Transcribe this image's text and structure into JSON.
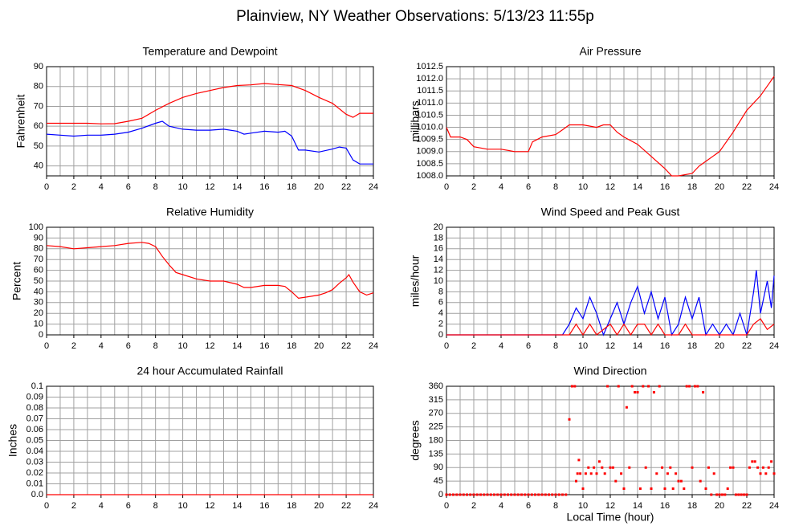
{
  "title": "Plainview, NY Weather Observations: 5/13/23 11:55p",
  "chart_data": [
    {
      "type": "line",
      "title": "Temperature and Dewpoint",
      "ylabel": "Fahrenheit",
      "xlim": [
        0,
        24
      ],
      "xticks": [
        0,
        2,
        4,
        6,
        8,
        10,
        12,
        14,
        16,
        18,
        20,
        22,
        24
      ],
      "xgrid": [
        0,
        1,
        2,
        3,
        4,
        5,
        6,
        7,
        8,
        9,
        10,
        11,
        12,
        13,
        14,
        15,
        16,
        17,
        18,
        19,
        20,
        21,
        22,
        23,
        24
      ],
      "ylim": [
        35,
        90
      ],
      "yticks": [
        40,
        50,
        60,
        70,
        80,
        90
      ],
      "series": [
        {
          "color": "#ff0000",
          "x": [
            0,
            1,
            2,
            3,
            4,
            5,
            6,
            7,
            8,
            9,
            10,
            11,
            12,
            13,
            14,
            15,
            16,
            17,
            18,
            19,
            20,
            21,
            22,
            22.5,
            23,
            24
          ],
          "values": [
            61.5,
            61.5,
            61.5,
            61.5,
            61.2,
            61.3,
            62.5,
            64,
            68,
            71.5,
            74.5,
            76.5,
            78,
            79.5,
            80.5,
            80.8,
            81.5,
            81,
            80.5,
            78,
            74.5,
            71.5,
            66,
            64.5,
            66.5,
            66.5
          ]
        },
        {
          "color": "#0000ff",
          "x": [
            0,
            1,
            2,
            3,
            4,
            5,
            6,
            7,
            8,
            8.5,
            9,
            10,
            11,
            12,
            13,
            14,
            14.5,
            15,
            16,
            17,
            17.5,
            18,
            18.5,
            19,
            20,
            21,
            21.5,
            22,
            22.5,
            23,
            24
          ],
          "values": [
            56,
            55.5,
            55,
            55.5,
            55.5,
            56,
            57,
            59,
            61.5,
            62.5,
            60,
            58.5,
            58,
            58,
            58.5,
            57.5,
            56,
            56.5,
            57.5,
            57,
            57.5,
            55,
            48,
            48,
            47,
            48.5,
            49.5,
            49,
            43,
            41,
            41
          ]
        }
      ]
    },
    {
      "type": "line",
      "title": "Air Pressure",
      "ylabel": "millibars",
      "xlim": [
        0,
        24
      ],
      "xticks": [
        0,
        2,
        4,
        6,
        8,
        10,
        12,
        14,
        16,
        18,
        20,
        22,
        24
      ],
      "xgrid": [
        0,
        1,
        2,
        3,
        4,
        5,
        6,
        7,
        8,
        9,
        10,
        11,
        12,
        13,
        14,
        15,
        16,
        17,
        18,
        19,
        20,
        21,
        22,
        23,
        24
      ],
      "ylim": [
        1008,
        1012.5
      ],
      "yticks": [
        {
          "value": 1008,
          "label": "1008.0"
        },
        1008.5,
        {
          "value": 1009,
          "label": "1009.0"
        },
        1009.5,
        {
          "value": 1010,
          "label": "1010.0"
        },
        1010.5,
        {
          "value": 1011,
          "label": "1011.0"
        },
        1011.5,
        {
          "value": 1012,
          "label": "1012.0"
        },
        1012.5
      ],
      "series": [
        {
          "color": "#ff0000",
          "x": [
            0,
            0.3,
            1,
            1.5,
            2,
            3,
            4,
            5,
            6,
            6.3,
            7,
            8,
            8.5,
            9,
            10,
            11,
            11.5,
            12,
            12.5,
            13,
            14,
            15,
            16,
            16.5,
            17,
            18,
            18.5,
            19,
            20,
            21,
            22,
            23,
            23.5,
            24
          ],
          "values": [
            1010,
            1009.6,
            1009.6,
            1009.5,
            1009.2,
            1009.1,
            1009.1,
            1009,
            1009,
            1009.4,
            1009.6,
            1009.7,
            1009.9,
            1010.1,
            1010.1,
            1010,
            1010.1,
            1010.1,
            1009.8,
            1009.6,
            1009.3,
            1008.8,
            1008.3,
            1008,
            1008,
            1008.1,
            1008.4,
            1008.6,
            1009,
            1009.8,
            1010.7,
            1011.3,
            1011.7,
            1012.1
          ]
        }
      ]
    },
    {
      "type": "line",
      "title": "Relative Humidity",
      "ylabel": "Percent",
      "xlim": [
        0,
        24
      ],
      "xticks": [
        0,
        2,
        4,
        6,
        8,
        10,
        12,
        14,
        16,
        18,
        20,
        22,
        24
      ],
      "xgrid": [
        0,
        1,
        2,
        3,
        4,
        5,
        6,
        7,
        8,
        9,
        10,
        11,
        12,
        13,
        14,
        15,
        16,
        17,
        18,
        19,
        20,
        21,
        22,
        23,
        24
      ],
      "ylim": [
        0,
        100
      ],
      "yticks": [
        0,
        10,
        20,
        30,
        40,
        50,
        60,
        70,
        80,
        90,
        100
      ],
      "series": [
        {
          "color": "#ff0000",
          "x": [
            0,
            1,
            2,
            3,
            4,
            5,
            6,
            7,
            7.5,
            8,
            8.5,
            9,
            9.5,
            10,
            11,
            12,
            13,
            14,
            14.5,
            15,
            16,
            17,
            17.5,
            18,
            18.5,
            19,
            20,
            20.5,
            21,
            21.5,
            22,
            22.2,
            22.5,
            23,
            23.5,
            24
          ],
          "values": [
            83,
            82,
            80,
            81,
            82,
            83,
            85,
            86,
            85,
            82,
            73,
            65,
            58,
            56,
            52,
            50,
            50,
            47,
            44,
            44,
            46,
            46,
            45,
            40,
            34,
            35,
            37,
            39,
            42,
            48,
            53,
            56,
            49,
            40,
            37,
            39
          ]
        }
      ]
    },
    {
      "type": "line",
      "title": "Wind Speed and Peak Gust",
      "ylabel": "miles/hour",
      "xlim": [
        0,
        24
      ],
      "xticks": [
        0,
        2,
        4,
        6,
        8,
        10,
        12,
        14,
        16,
        18,
        20,
        22,
        24
      ],
      "xgrid": [
        0,
        1,
        2,
        3,
        4,
        5,
        6,
        7,
        8,
        9,
        10,
        11,
        12,
        13,
        14,
        15,
        16,
        17,
        18,
        19,
        20,
        21,
        22,
        23,
        24
      ],
      "ylim": [
        0,
        20
      ],
      "yticks": [
        0,
        2,
        4,
        6,
        8,
        10,
        12,
        14,
        16,
        18,
        20
      ],
      "series": [
        {
          "color": "#0000ff",
          "x": [
            0,
            8.5,
            9,
            9.5,
            10,
            10.5,
            11,
            11.5,
            12,
            12.5,
            13,
            13.5,
            14,
            14.5,
            15,
            15.5,
            16,
            16.5,
            17,
            17.5,
            18,
            18.5,
            19,
            19.5,
            20,
            20.5,
            21,
            21.5,
            22,
            22.5,
            22.7,
            23,
            23.5,
            23.8,
            24
          ],
          "values": [
            0,
            0,
            2,
            5,
            3,
            7,
            4,
            0,
            3,
            6,
            2,
            6,
            9,
            4,
            8,
            3,
            7,
            0,
            2,
            7,
            3,
            7,
            0,
            2,
            0,
            2,
            0,
            4,
            0,
            8,
            12,
            4,
            10,
            5,
            11
          ]
        },
        {
          "color": "#ff0000",
          "x": [
            0,
            9,
            9.5,
            10,
            10.5,
            11,
            12,
            12.5,
            13,
            13.5,
            14,
            14.5,
            15,
            15.5,
            16,
            17,
            17.5,
            18,
            22,
            22.5,
            23,
            23.5,
            24
          ],
          "values": [
            0,
            0,
            2,
            0,
            2,
            0,
            2,
            0,
            2,
            0,
            2,
            2,
            0,
            2,
            0,
            0,
            2,
            0,
            0,
            2,
            3,
            1,
            2
          ]
        }
      ]
    },
    {
      "type": "line",
      "title": "24 hour Accumulated Rainfall",
      "ylabel": "Inches",
      "xlim": [
        0,
        24
      ],
      "xticks": [
        0,
        2,
        4,
        6,
        8,
        10,
        12,
        14,
        16,
        18,
        20,
        22,
        24
      ],
      "xgrid": [
        0,
        1,
        2,
        3,
        4,
        5,
        6,
        7,
        8,
        9,
        10,
        11,
        12,
        13,
        14,
        15,
        16,
        17,
        18,
        19,
        20,
        21,
        22,
        23,
        24
      ],
      "ylim": [
        0,
        0.1
      ],
      "yticks": [
        {
          "value": 0,
          "label": "0.0"
        },
        0.01,
        0.02,
        0.03,
        0.04,
        0.05,
        0.06,
        0.07,
        0.08,
        0.09,
        0.1
      ],
      "series": [
        {
          "color": "#ff0000",
          "x": [
            0,
            24
          ],
          "values": [
            0,
            0
          ]
        }
      ]
    },
    {
      "type": "scatter",
      "title": "Wind Direction",
      "ylabel": "degrees",
      "xlabel": "Local Time (hour)",
      "xlim": [
        0,
        24
      ],
      "xticks": [
        0,
        2,
        4,
        6,
        8,
        10,
        12,
        14,
        16,
        18,
        20,
        22,
        24
      ],
      "xgrid": [
        0,
        1,
        2,
        3,
        4,
        5,
        6,
        7,
        8,
        9,
        10,
        11,
        12,
        13,
        14,
        15,
        16,
        17,
        18,
        19,
        20,
        21,
        22,
        23,
        24
      ],
      "ylim": [
        0,
        360
      ],
      "yticks": [
        0,
        45,
        90,
        135,
        180,
        225,
        270,
        315,
        360
      ],
      "series": [
        {
          "color": "#ff0000",
          "x": [
            0,
            0.25,
            0.5,
            0.75,
            1,
            1.25,
            1.5,
            1.75,
            2,
            2.25,
            2.5,
            2.75,
            3,
            3.25,
            3.5,
            3.75,
            4,
            4.25,
            4.5,
            4.75,
            5,
            5.25,
            5.5,
            5.75,
            6,
            6.25,
            6.5,
            6.75,
            7,
            7.25,
            7.5,
            7.75,
            8,
            8.25,
            8.5,
            8.75,
            9,
            9.2,
            9.4,
            9.5,
            9.6,
            9.7,
            9.8,
            10,
            10.2,
            10.4,
            10.6,
            10.8,
            11,
            11.2,
            11.4,
            11.6,
            11.8,
            12,
            12.2,
            12.4,
            12.6,
            12.8,
            13,
            13.2,
            13.4,
            13.6,
            13.8,
            14,
            14.2,
            14.4,
            14.6,
            14.8,
            15,
            15.2,
            15.4,
            15.6,
            15.8,
            16,
            16.2,
            16.4,
            16.6,
            16.8,
            17,
            17.2,
            17.4,
            17.6,
            17.8,
            18,
            18.2,
            18.4,
            18.6,
            18.8,
            19,
            19.2,
            19.4,
            19.6,
            19.8,
            20,
            20.2,
            20.4,
            20.6,
            20.8,
            21,
            21.2,
            21.4,
            21.6,
            21.8,
            22,
            22.2,
            22.4,
            22.6,
            22.8,
            23,
            23.2,
            23.4,
            23.6,
            23.8,
            24
          ],
          "values": [
            0,
            0,
            0,
            0,
            0,
            0,
            0,
            0,
            0,
            0,
            0,
            0,
            0,
            0,
            0,
            0,
            0,
            0,
            0,
            0,
            0,
            0,
            0,
            0,
            0,
            0,
            0,
            0,
            0,
            0,
            0,
            0,
            0,
            0,
            0,
            0,
            250,
            360,
            360,
            45,
            70,
            115,
            70,
            20,
            70,
            90,
            70,
            90,
            70,
            110,
            90,
            70,
            360,
            90,
            90,
            45,
            360,
            70,
            20,
            290,
            90,
            360,
            340,
            340,
            20,
            360,
            90,
            360,
            20,
            340,
            70,
            360,
            90,
            20,
            70,
            90,
            20,
            70,
            45,
            45,
            20,
            360,
            360,
            90,
            360,
            360,
            45,
            340,
            20,
            90,
            0,
            70,
            0,
            0,
            0,
            0,
            20,
            90,
            90,
            0,
            0,
            0,
            0,
            0,
            90,
            110,
            110,
            90,
            70,
            90,
            70,
            90,
            110,
            70
          ]
        }
      ]
    }
  ]
}
